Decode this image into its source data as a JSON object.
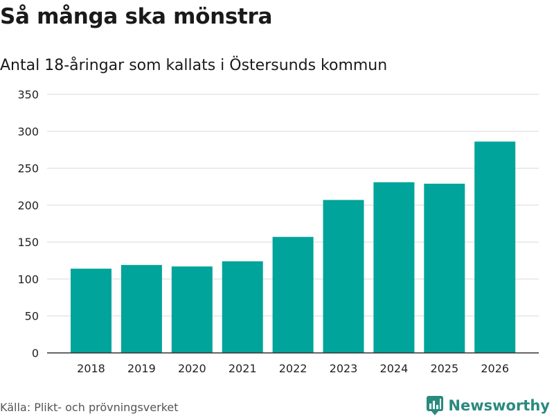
{
  "title": "Så många ska mönstra",
  "subtitle": "Antal 18-åringar som kallats i Östersunds kommun",
  "source": "Källa: Plikt- och prövningsverket",
  "brand": "Newsworthy",
  "colors": {
    "bar": "#00a49a",
    "grid": "#d9d9d9",
    "axis": "#333333",
    "brand": "#2a8a7e"
  },
  "chart_data": {
    "type": "bar",
    "title": "Så många ska mönstra",
    "subtitle": "Antal 18-åringar som kallats i Östersunds kommun",
    "xlabel": "",
    "ylabel": "",
    "categories": [
      "2018",
      "2019",
      "2020",
      "2021",
      "2022",
      "2023",
      "2024",
      "2025",
      "2026"
    ],
    "values": [
      114,
      119,
      117,
      124,
      157,
      207,
      231,
      229,
      286
    ],
    "ylim": [
      0,
      350
    ],
    "yticks": [
      0,
      50,
      100,
      150,
      200,
      250,
      300,
      350
    ],
    "grid": true,
    "legend": "none"
  }
}
